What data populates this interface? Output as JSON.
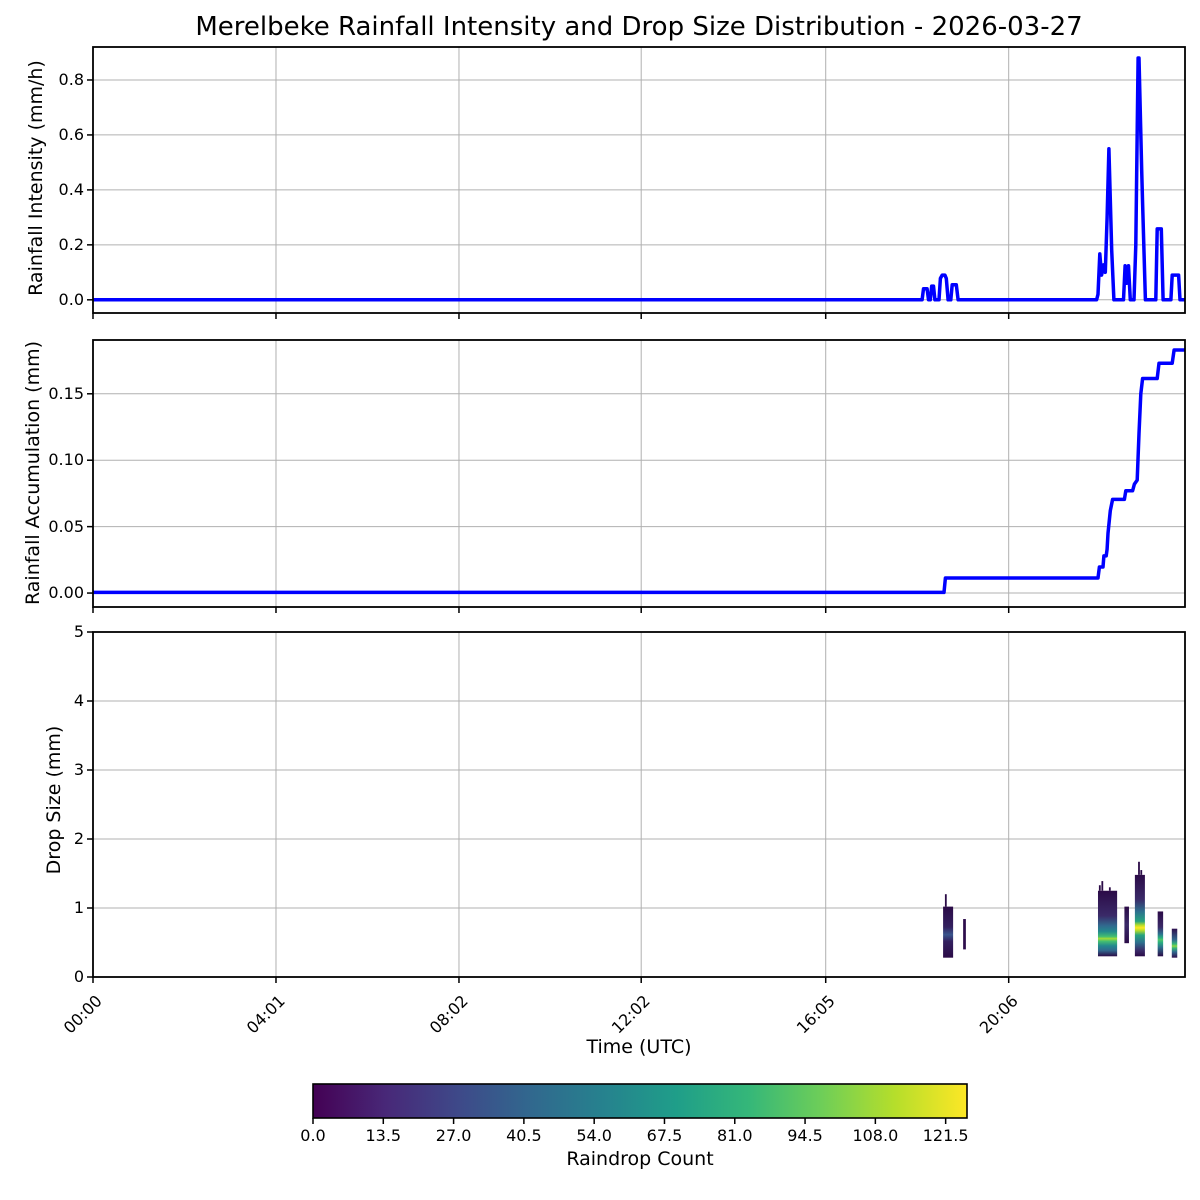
{
  "title": "Merelbeke Rainfall Intensity and Drop Size Distribution - 2026-03-27",
  "x_axis": {
    "label": "Time (UTC)",
    "tick_labels": [
      "00:00",
      "04:01",
      "08:02",
      "12:02",
      "16:05",
      "20:06"
    ],
    "tick_hours": [
      0,
      4.0167,
      8.0333,
      12.0333,
      16.0833,
      20.1
    ],
    "range_hours": [
      0,
      23.97
    ]
  },
  "style": {
    "line_color": "#0000ff",
    "grid_color": "#b0b0b0",
    "spine_color": "#000000"
  },
  "chart_data": [
    {
      "type": "line",
      "name": "rainfall-intensity",
      "ylabel": "Rainfall Intensity (mm/h)",
      "ylim": [
        -0.048,
        0.92
      ],
      "yticks": [
        0.0,
        0.2,
        0.4,
        0.6,
        0.8
      ],
      "ytick_labels": [
        "0.0",
        "0.2",
        "0.4",
        "0.6",
        "0.8"
      ],
      "points": [
        [
          0,
          0
        ],
        [
          18.2,
          0
        ],
        [
          18.23,
          0.04
        ],
        [
          18.31,
          0.04
        ],
        [
          18.34,
          0
        ],
        [
          18.38,
          0
        ],
        [
          18.41,
          0.05
        ],
        [
          18.45,
          0.05
        ],
        [
          18.48,
          0
        ],
        [
          18.57,
          0
        ],
        [
          18.6,
          0.078
        ],
        [
          18.64,
          0.09
        ],
        [
          18.7,
          0.09
        ],
        [
          18.73,
          0.078
        ],
        [
          18.77,
          0
        ],
        [
          18.83,
          0
        ],
        [
          18.86,
          0.055
        ],
        [
          18.95,
          0.055
        ],
        [
          18.99,
          0
        ],
        [
          22.03,
          0
        ],
        [
          22.06,
          0.02
        ],
        [
          22.1,
          0.167
        ],
        [
          22.14,
          0.09
        ],
        [
          22.18,
          0.127
        ],
        [
          22.22,
          0.1
        ],
        [
          22.26,
          0.3
        ],
        [
          22.3,
          0.55
        ],
        [
          22.36,
          0.18
        ],
        [
          22.41,
          0
        ],
        [
          22.62,
          0
        ],
        [
          22.655,
          0.124
        ],
        [
          22.69,
          0.06
        ],
        [
          22.73,
          0.124
        ],
        [
          22.77,
          0
        ],
        [
          22.85,
          0
        ],
        [
          22.89,
          0.2
        ],
        [
          22.94,
          0.88
        ],
        [
          22.96,
          0.88
        ],
        [
          23.02,
          0.47
        ],
        [
          23.04,
          0.35
        ],
        [
          23.1,
          0
        ],
        [
          23.33,
          0
        ],
        [
          23.36,
          0.258
        ],
        [
          23.45,
          0.258
        ],
        [
          23.49,
          0
        ],
        [
          23.66,
          0
        ],
        [
          23.69,
          0.09
        ],
        [
          23.83,
          0.09
        ],
        [
          23.86,
          0
        ],
        [
          23.97,
          0
        ]
      ]
    },
    {
      "type": "line",
      "name": "rainfall-accumulation",
      "ylabel": "Rainfall Accumulation (mm)",
      "ylim": [
        -0.0105,
        0.1905
      ],
      "yticks": [
        0.0,
        0.05,
        0.1,
        0.15
      ],
      "ytick_labels": [
        "0.00",
        "0.05",
        "0.10",
        "0.15"
      ],
      "points": [
        [
          0,
          0.0005
        ],
        [
          18.68,
          0.0005
        ],
        [
          18.71,
          0.0113
        ],
        [
          22.06,
          0.0113
        ],
        [
          22.09,
          0.0196
        ],
        [
          22.17,
          0.0196
        ],
        [
          22.19,
          0.028
        ],
        [
          22.24,
          0.028
        ],
        [
          22.26,
          0.033
        ],
        [
          22.28,
          0.045
        ],
        [
          22.33,
          0.062
        ],
        [
          22.38,
          0.0705
        ],
        [
          22.64,
          0.0705
        ],
        [
          22.67,
          0.077
        ],
        [
          22.82,
          0.077
        ],
        [
          22.86,
          0.082
        ],
        [
          22.92,
          0.085
        ],
        [
          22.96,
          0.12
        ],
        [
          23.0,
          0.15
        ],
        [
          23.04,
          0.1615
        ],
        [
          23.36,
          0.1615
        ],
        [
          23.4,
          0.173
        ],
        [
          23.69,
          0.173
        ],
        [
          23.73,
          0.183
        ],
        [
          23.97,
          0.183
        ]
      ]
    },
    {
      "type": "heatmap",
      "name": "drop-size-distribution",
      "ylabel": "Drop Size (mm)",
      "ylim": [
        0,
        5
      ],
      "yticks": [
        0,
        1,
        2,
        3,
        4,
        5
      ],
      "ytick_labels": [
        "0",
        "1",
        "2",
        "3",
        "4",
        "5"
      ],
      "patches": [
        {
          "t0": 18.66,
          "t1": 18.88,
          "s0": 0.28,
          "s1": 1.02,
          "stops": [
            [
              0,
              "#2b0b47"
            ],
            [
              0.4,
              "#33205f"
            ],
            [
              0.55,
              "#39558c"
            ],
            [
              0.68,
              "#33205f"
            ],
            [
              1,
              "#2b0b47"
            ]
          ],
          "spikes": [
            [
              18.72,
              1.02,
              1.2
            ]
          ]
        },
        {
          "t0": 19.1,
          "t1": 19.16,
          "s0": 0.4,
          "s1": 0.84,
          "stops": [
            [
              0,
              "#2d0d4b"
            ],
            [
              1,
              "#2d0d4b"
            ]
          ],
          "spikes": []
        },
        {
          "t0": 22.06,
          "t1": 22.48,
          "s0": 0.3,
          "s1": 1.25,
          "stops": [
            [
              0,
              "#2b0b47"
            ],
            [
              0.38,
              "#3a2a68"
            ],
            [
              0.53,
              "#31688e"
            ],
            [
              0.62,
              "#23898e"
            ],
            [
              0.7,
              "#44bf70"
            ],
            [
              0.73,
              "#a5db36"
            ],
            [
              0.77,
              "#44bf70"
            ],
            [
              0.84,
              "#23898e"
            ],
            [
              0.91,
              "#31688e"
            ],
            [
              1,
              "#2b0b47"
            ]
          ],
          "spikes": [
            [
              22.1,
              1.25,
              1.33
            ],
            [
              22.155,
              1.25,
              1.39
            ],
            [
              22.32,
              1.25,
              1.3
            ]
          ]
        },
        {
          "t0": 22.64,
          "t1": 22.74,
          "s0": 0.49,
          "s1": 1.02,
          "stops": [
            [
              0,
              "#2b0b47"
            ],
            [
              0.5,
              "#3a2a68"
            ],
            [
              1,
              "#2b0b47"
            ]
          ],
          "spikes": []
        },
        {
          "t0": 22.87,
          "t1": 23.09,
          "s0": 0.3,
          "s1": 1.48,
          "stops": [
            [
              0,
              "#2b0b47"
            ],
            [
              0.3,
              "#3a2a68"
            ],
            [
              0.45,
              "#2d708e"
            ],
            [
              0.57,
              "#25a37f"
            ],
            [
              0.62,
              "#bddf26"
            ],
            [
              0.65,
              "#fde725"
            ],
            [
              0.68,
              "#bddf26"
            ],
            [
              0.74,
              "#25a37f"
            ],
            [
              0.83,
              "#2d708e"
            ],
            [
              0.93,
              "#3a2a68"
            ],
            [
              1,
              "#2b0b47"
            ]
          ],
          "spikes": [
            [
              22.96,
              1.48,
              1.67
            ],
            [
              23.01,
              1.48,
              1.55
            ]
          ]
        },
        {
          "t0": 23.37,
          "t1": 23.49,
          "s0": 0.3,
          "s1": 0.95,
          "stops": [
            [
              0,
              "#2b0b47"
            ],
            [
              0.35,
              "#3a2a68"
            ],
            [
              0.5,
              "#2d708e"
            ],
            [
              0.59,
              "#2ab07f"
            ],
            [
              0.63,
              "#52c569"
            ],
            [
              0.69,
              "#2ab07f"
            ],
            [
              0.8,
              "#2d708e"
            ],
            [
              1,
              "#2b0b47"
            ]
          ],
          "spikes": []
        },
        {
          "t0": 23.68,
          "t1": 23.8,
          "s0": 0.28,
          "s1": 0.7,
          "stops": [
            [
              0,
              "#2e0f4e"
            ],
            [
              0.38,
              "#31688e"
            ],
            [
              0.53,
              "#35b779"
            ],
            [
              0.6,
              "#8ed645"
            ],
            [
              0.67,
              "#35b779"
            ],
            [
              0.8,
              "#31688e"
            ],
            [
              1,
              "#2e0f4e"
            ]
          ],
          "spikes": []
        }
      ]
    }
  ],
  "colorbar": {
    "label": "Raindrop Count",
    "colormap": "viridis",
    "vmin": 0,
    "vmax": 125.6,
    "tick_values": [
      0,
      13.5,
      27,
      40.5,
      54,
      67.5,
      81,
      94.5,
      108,
      121.5
    ],
    "tick_labels": [
      "0.0",
      "13.5",
      "27.0",
      "40.5",
      "54.0",
      "67.5",
      "81.0",
      "94.5",
      "108.0",
      "121.5"
    ],
    "colors": [
      "#440154",
      "#482878",
      "#3e4989",
      "#31688e",
      "#26828e",
      "#1f9e89",
      "#35b779",
      "#6ece58",
      "#b5de2b",
      "#fde725"
    ]
  }
}
